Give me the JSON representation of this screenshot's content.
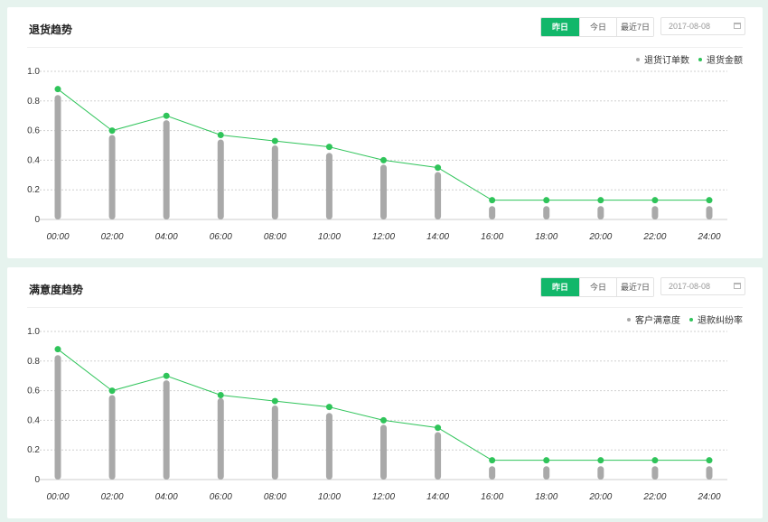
{
  "colors": {
    "accent": "#12b76a",
    "bar": "#a9a9a9",
    "line": "#2fc45a",
    "grid": "#cfcfcf",
    "axis_text": "#333333"
  },
  "panels": [
    {
      "title": "退货趋势",
      "buttons": [
        "昨日",
        "今日",
        "最近7日"
      ],
      "active_button": 0,
      "date_value": "2017-08-08",
      "date_icon": "calendar-icon",
      "legend": [
        "退货订单数",
        "退货金额"
      ],
      "chart_data": {
        "type": "bar",
        "categories": [
          "00:00",
          "02:00",
          "04:00",
          "06:00",
          "08:00",
          "10:00",
          "12:00",
          "14:00",
          "16:00",
          "18:00",
          "20:00",
          "22:00",
          "24:00"
        ],
        "y_ticks": [
          "0",
          "0.2",
          "0.4",
          "0.6",
          "0.8",
          "1.0"
        ],
        "ylim": [
          0,
          1.0
        ],
        "grid": true,
        "legend_position": "top-right",
        "series": [
          {
            "name": "退货订单数",
            "type": "bar",
            "values": [
              0.84,
              0.57,
              0.67,
              0.54,
              0.5,
              0.45,
              0.37,
              0.32,
              0.09,
              0.09,
              0.09,
              0.09,
              0.09
            ]
          },
          {
            "name": "退货金额",
            "type": "line",
            "values": [
              0.88,
              0.6,
              0.7,
              0.57,
              0.53,
              0.49,
              0.4,
              0.35,
              0.13,
              0.13,
              0.13,
              0.13,
              0.13
            ]
          }
        ]
      }
    },
    {
      "title": "满意度趋势",
      "buttons": [
        "昨日",
        "今日",
        "最近7日"
      ],
      "active_button": 0,
      "date_value": "2017-08-08",
      "date_icon": "calendar-icon",
      "legend": [
        "客户满意度",
        "退款纠纷率"
      ],
      "chart_data": {
        "type": "bar",
        "categories": [
          "00:00",
          "02:00",
          "04:00",
          "06:00",
          "08:00",
          "10:00",
          "12:00",
          "14:00",
          "16:00",
          "18:00",
          "20:00",
          "22:00",
          "24:00"
        ],
        "y_ticks": [
          "0",
          "0.2",
          "0.4",
          "0.6",
          "0.8",
          "1.0"
        ],
        "ylim": [
          0,
          1.0
        ],
        "grid": true,
        "legend_position": "top-right",
        "series": [
          {
            "name": "客户满意度",
            "type": "bar",
            "values": [
              0.84,
              0.57,
              0.67,
              0.55,
              0.5,
              0.45,
              0.37,
              0.32,
              0.09,
              0.09,
              0.09,
              0.09,
              0.09
            ]
          },
          {
            "name": "退款纠纷率",
            "type": "line",
            "values": [
              0.88,
              0.6,
              0.7,
              0.57,
              0.53,
              0.49,
              0.4,
              0.35,
              0.13,
              0.13,
              0.13,
              0.13,
              0.13
            ]
          }
        ]
      }
    }
  ]
}
